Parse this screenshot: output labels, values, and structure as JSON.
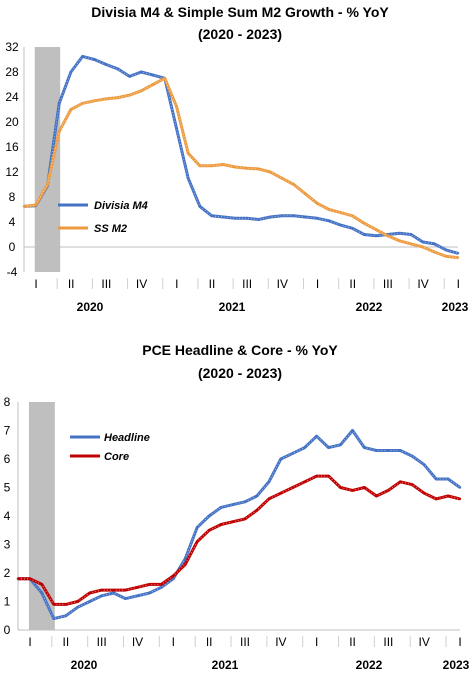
{
  "chart_data": [
    {
      "type": "line",
      "title": "Divisia M4 & Simple Sum M2 Growth - % YoY",
      "subtitle": "(2020 - 2023)",
      "xlabel": "",
      "ylabel": "",
      "ylim": [
        -4,
        32
      ],
      "yticks": [
        -4,
        0,
        4,
        8,
        12,
        16,
        20,
        24,
        28,
        32
      ],
      "grid": false,
      "legend": "center-left",
      "recession_shading": [
        "2020-02",
        "2020-04"
      ],
      "quarter_labels": [
        "I",
        "II",
        "III",
        "IV",
        "I",
        "II",
        "III",
        "IV",
        "I",
        "II",
        "III",
        "IV",
        "I"
      ],
      "year_labels": [
        "2020",
        "2021",
        "2022",
        "2023"
      ],
      "x": [
        "2020-01",
        "2020-02",
        "2020-03",
        "2020-04",
        "2020-05",
        "2020-06",
        "2020-07",
        "2020-08",
        "2020-09",
        "2020-10",
        "2020-11",
        "2020-12",
        "2021-01",
        "2021-02",
        "2021-03",
        "2021-04",
        "2021-05",
        "2021-06",
        "2021-07",
        "2021-08",
        "2021-09",
        "2021-10",
        "2021-11",
        "2021-12",
        "2022-01",
        "2022-02",
        "2022-03",
        "2022-04",
        "2022-05",
        "2022-06",
        "2022-07",
        "2022-08",
        "2022-09",
        "2022-10",
        "2022-11",
        "2022-12",
        "2023-01",
        "2023-02"
      ],
      "series": [
        {
          "name": "Divisia M4",
          "color": "#4472c4",
          "values": [
            6.5,
            6.6,
            9.8,
            23.0,
            28.0,
            30.5,
            30.0,
            29.2,
            28.5,
            27.3,
            28.0,
            27.5,
            27.0,
            19.0,
            11.0,
            6.5,
            5.0,
            4.8,
            4.6,
            4.6,
            4.4,
            4.8,
            5.0,
            5.0,
            4.8,
            4.6,
            4.2,
            3.5,
            3.0,
            2.0,
            1.8,
            2.0,
            2.2,
            2.0,
            0.8,
            0.5,
            -0.5,
            -1.0
          ]
        },
        {
          "name": "SS M2",
          "color": "#ed9b40",
          "values": [
            6.5,
            6.7,
            10.0,
            18.5,
            22.0,
            23.0,
            23.4,
            23.7,
            23.9,
            24.3,
            25.0,
            26.0,
            27.0,
            22.5,
            15.0,
            13.0,
            13.0,
            13.2,
            12.8,
            12.6,
            12.5,
            12.0,
            11.0,
            10.0,
            8.5,
            7.0,
            6.0,
            5.5,
            5.0,
            3.8,
            2.8,
            1.8,
            1.0,
            0.5,
            0.0,
            -0.8,
            -1.5,
            -1.7
          ]
        }
      ]
    },
    {
      "type": "line",
      "title": "PCE Headline & Core - % YoY",
      "subtitle": "(2020 - 2023)",
      "xlabel": "",
      "ylabel": "",
      "ylim": [
        0,
        8
      ],
      "yticks": [
        0,
        1,
        2,
        3,
        4,
        5,
        6,
        7,
        8
      ],
      "grid": false,
      "legend": "top-left",
      "recession_shading": [
        "2020-02",
        "2020-04"
      ],
      "quarter_labels": [
        "I",
        "II",
        "III",
        "IV",
        "I",
        "II",
        "III",
        "IV",
        "I",
        "II",
        "III",
        "IV",
        "I"
      ],
      "year_labels": [
        "2020",
        "2021",
        "2022",
        "2023"
      ],
      "x": [
        "2020-01",
        "2020-02",
        "2020-03",
        "2020-04",
        "2020-05",
        "2020-06",
        "2020-07",
        "2020-08",
        "2020-09",
        "2020-10",
        "2020-11",
        "2020-12",
        "2021-01",
        "2021-02",
        "2021-03",
        "2021-04",
        "2021-05",
        "2021-06",
        "2021-07",
        "2021-08",
        "2021-09",
        "2021-10",
        "2021-11",
        "2021-12",
        "2022-01",
        "2022-02",
        "2022-03",
        "2022-04",
        "2022-05",
        "2022-06",
        "2022-07",
        "2022-08",
        "2022-09",
        "2022-10",
        "2022-11",
        "2022-12",
        "2023-01",
        "2023-02"
      ],
      "series": [
        {
          "name": "Headline",
          "color": "#4472c4",
          "values": [
            1.8,
            1.8,
            1.3,
            0.4,
            0.5,
            0.8,
            1.0,
            1.2,
            1.3,
            1.1,
            1.2,
            1.3,
            1.5,
            1.8,
            2.5,
            3.6,
            4.0,
            4.3,
            4.4,
            4.5,
            4.7,
            5.2,
            6.0,
            6.2,
            6.4,
            6.8,
            6.4,
            6.5,
            7.0,
            6.4,
            6.3,
            6.3,
            6.3,
            6.1,
            5.8,
            5.3,
            5.3,
            5.0
          ]
        },
        {
          "name": "Core",
          "color": "#c00000",
          "values": [
            1.8,
            1.8,
            1.6,
            0.9,
            0.9,
            1.0,
            1.3,
            1.4,
            1.4,
            1.4,
            1.5,
            1.6,
            1.6,
            1.9,
            2.3,
            3.1,
            3.5,
            3.7,
            3.8,
            3.9,
            4.2,
            4.6,
            4.8,
            5.0,
            5.2,
            5.4,
            5.4,
            5.0,
            4.9,
            5.0,
            4.7,
            4.9,
            5.2,
            5.1,
            4.8,
            4.6,
            4.7,
            4.6
          ]
        }
      ]
    }
  ]
}
